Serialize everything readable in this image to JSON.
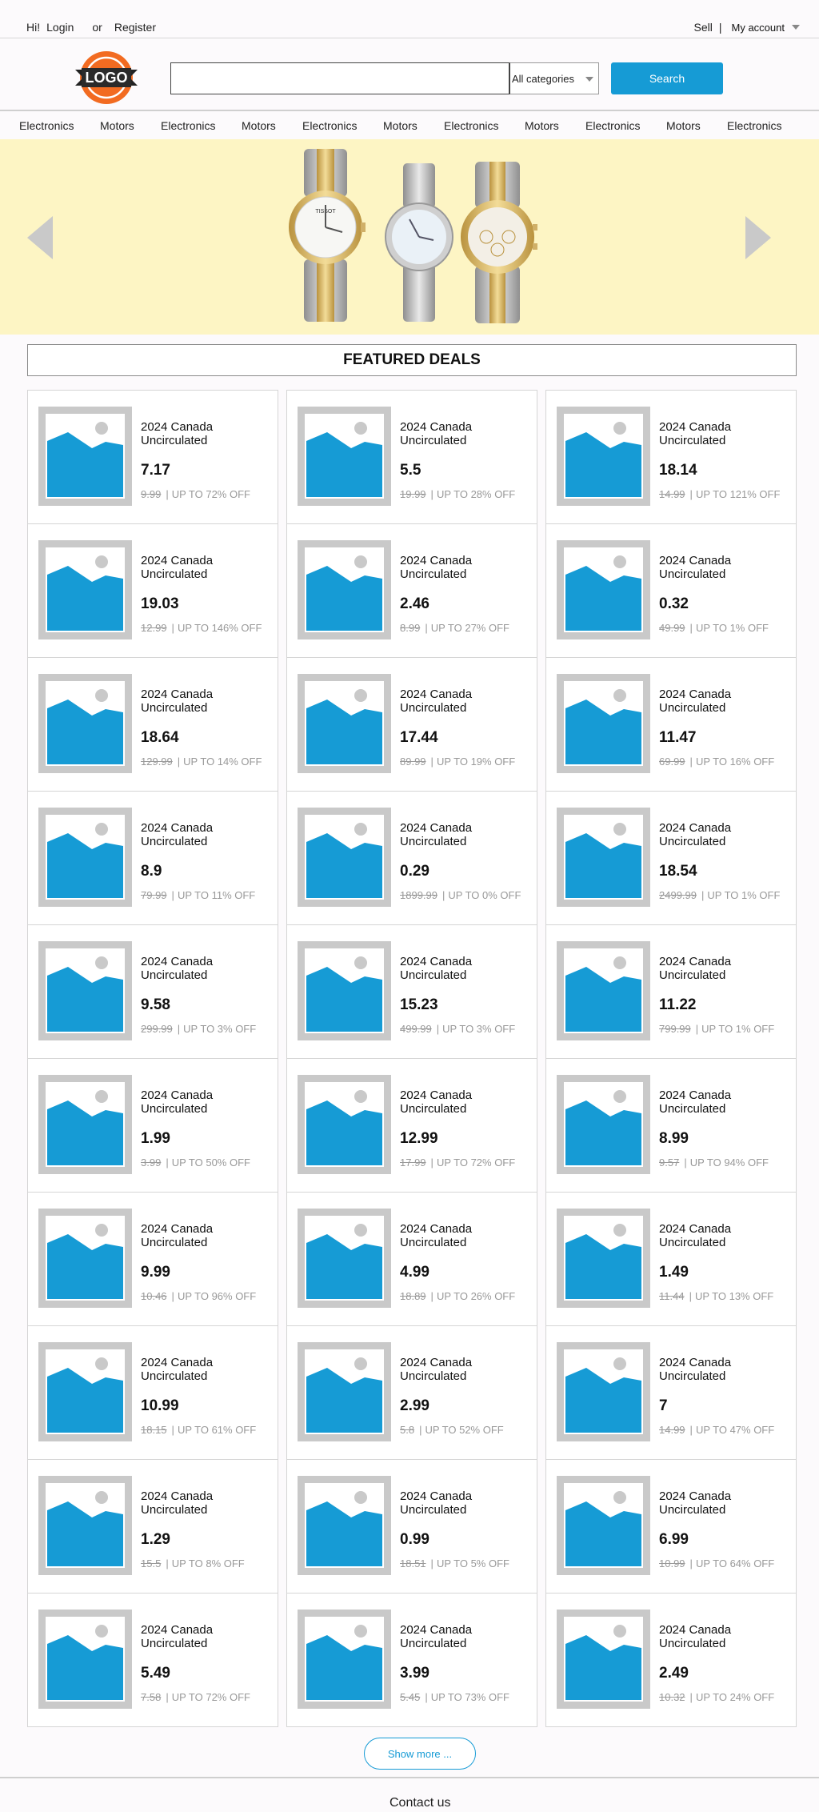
{
  "topbar": {
    "greeting": "Hi!",
    "login": "Login",
    "or": "or",
    "register": "Register",
    "sell": "Sell",
    "separator": "|",
    "my_account": "My account"
  },
  "header": {
    "logo_text": "LOGO",
    "search_placeholder": "",
    "category_selected": "All categories",
    "search_button": "Search"
  },
  "categories": [
    "Electronics",
    "Motors",
    "Electronics",
    "Motors",
    "Electronics",
    "Motors",
    "Electronics",
    "Motors",
    "Electronics",
    "Motors",
    "Electronics"
  ],
  "banner": {
    "watch_brand": "TISSOT"
  },
  "featured": {
    "title": "FEATURED DEALS",
    "items": [
      {
        "name": "2024 Canada Uncirculated",
        "price": "7.17",
        "original": "9.99",
        "discount": "UP TO 72% OFF"
      },
      {
        "name": "2024 Canada Uncirculated",
        "price": "5.5",
        "original": "19.99",
        "discount": "UP TO 28% OFF"
      },
      {
        "name": "2024 Canada Uncirculated",
        "price": "18.14",
        "original": "14.99",
        "discount": "UP TO 121% OFF"
      },
      {
        "name": "2024 Canada Uncirculated",
        "price": "19.03",
        "original": "12.99",
        "discount": "UP TO 146% OFF"
      },
      {
        "name": "2024 Canada Uncirculated",
        "price": "2.46",
        "original": "8.99",
        "discount": "UP TO 27% OFF"
      },
      {
        "name": "2024 Canada Uncirculated",
        "price": "0.32",
        "original": "49.99",
        "discount": "UP TO 1% OFF"
      },
      {
        "name": "2024 Canada Uncirculated",
        "price": "18.64",
        "original": "129.99",
        "discount": "UP TO 14% OFF"
      },
      {
        "name": "2024 Canada Uncirculated",
        "price": "17.44",
        "original": "89.99",
        "discount": "UP TO 19% OFF"
      },
      {
        "name": "2024 Canada Uncirculated",
        "price": "11.47",
        "original": "69.99",
        "discount": "UP TO 16% OFF"
      },
      {
        "name": "2024 Canada Uncirculated",
        "price": "8.9",
        "original": "79.99",
        "discount": "UP TO 11% OFF"
      },
      {
        "name": "2024 Canada Uncirculated",
        "price": "0.29",
        "original": "1899.99",
        "discount": "UP TO 0% OFF"
      },
      {
        "name": "2024 Canada Uncirculated",
        "price": "18.54",
        "original": "2499.99",
        "discount": "UP TO 1% OFF"
      },
      {
        "name": "2024 Canada Uncirculated",
        "price": "9.58",
        "original": "299.99",
        "discount": "UP TO 3% OFF"
      },
      {
        "name": "2024 Canada Uncirculated",
        "price": "15.23",
        "original": "499.99",
        "discount": "UP TO 3% OFF"
      },
      {
        "name": "2024 Canada Uncirculated",
        "price": "11.22",
        "original": "799.99",
        "discount": "UP TO 1% OFF"
      },
      {
        "name": "2024 Canada Uncirculated",
        "price": "1.99",
        "original": "3.99",
        "discount": "UP TO 50% OFF"
      },
      {
        "name": "2024 Canada Uncirculated",
        "price": "12.99",
        "original": "17.99",
        "discount": "UP TO 72% OFF"
      },
      {
        "name": "2024 Canada Uncirculated",
        "price": "8.99",
        "original": "9.57",
        "discount": "UP TO 94% OFF"
      },
      {
        "name": "2024 Canada Uncirculated",
        "price": "9.99",
        "original": "10.46",
        "discount": "UP TO 96% OFF"
      },
      {
        "name": "2024 Canada Uncirculated",
        "price": "4.99",
        "original": "18.89",
        "discount": "UP TO 26% OFF"
      },
      {
        "name": "2024 Canada Uncirculated",
        "price": "1.49",
        "original": "11.44",
        "discount": "UP TO 13% OFF"
      },
      {
        "name": "2024 Canada Uncirculated",
        "price": "10.99",
        "original": "18.15",
        "discount": "UP TO 61% OFF"
      },
      {
        "name": "2024 Canada Uncirculated",
        "price": "2.99",
        "original": "5.8",
        "discount": "UP TO 52% OFF"
      },
      {
        "name": "2024 Canada Uncirculated",
        "price": "7",
        "original": "14.99",
        "discount": "UP TO 47% OFF"
      },
      {
        "name": "2024 Canada Uncirculated",
        "price": "1.29",
        "original": "15.5",
        "discount": "UP TO 8% OFF"
      },
      {
        "name": "2024 Canada Uncirculated",
        "price": "0.99",
        "original": "18.51",
        "discount": "UP TO 5% OFF"
      },
      {
        "name": "2024 Canada Uncirculated",
        "price": "6.99",
        "original": "10.99",
        "discount": "UP TO 64% OFF"
      },
      {
        "name": "2024 Canada Uncirculated",
        "price": "5.49",
        "original": "7.58",
        "discount": "UP TO 72% OFF"
      },
      {
        "name": "2024 Canada Uncirculated",
        "price": "3.99",
        "original": "5.45",
        "discount": "UP TO 73% OFF"
      },
      {
        "name": "2024 Canada Uncirculated",
        "price": "2.49",
        "original": "10.32",
        "discount": "UP TO 24% OFF"
      }
    ]
  },
  "show_more": "Show more ...",
  "footer": {
    "contact": "Contact us"
  },
  "colors": {
    "accent": "#169bd5",
    "placeholder_frame": "#c9c9c9",
    "banner_bg": "#fdf5c4",
    "logo_orange": "#f26b21"
  },
  "icons": {
    "product_thumbnail": "image-placeholder-icon",
    "slider_prev": "triangle-left-icon",
    "slider_next": "triangle-right-icon"
  }
}
